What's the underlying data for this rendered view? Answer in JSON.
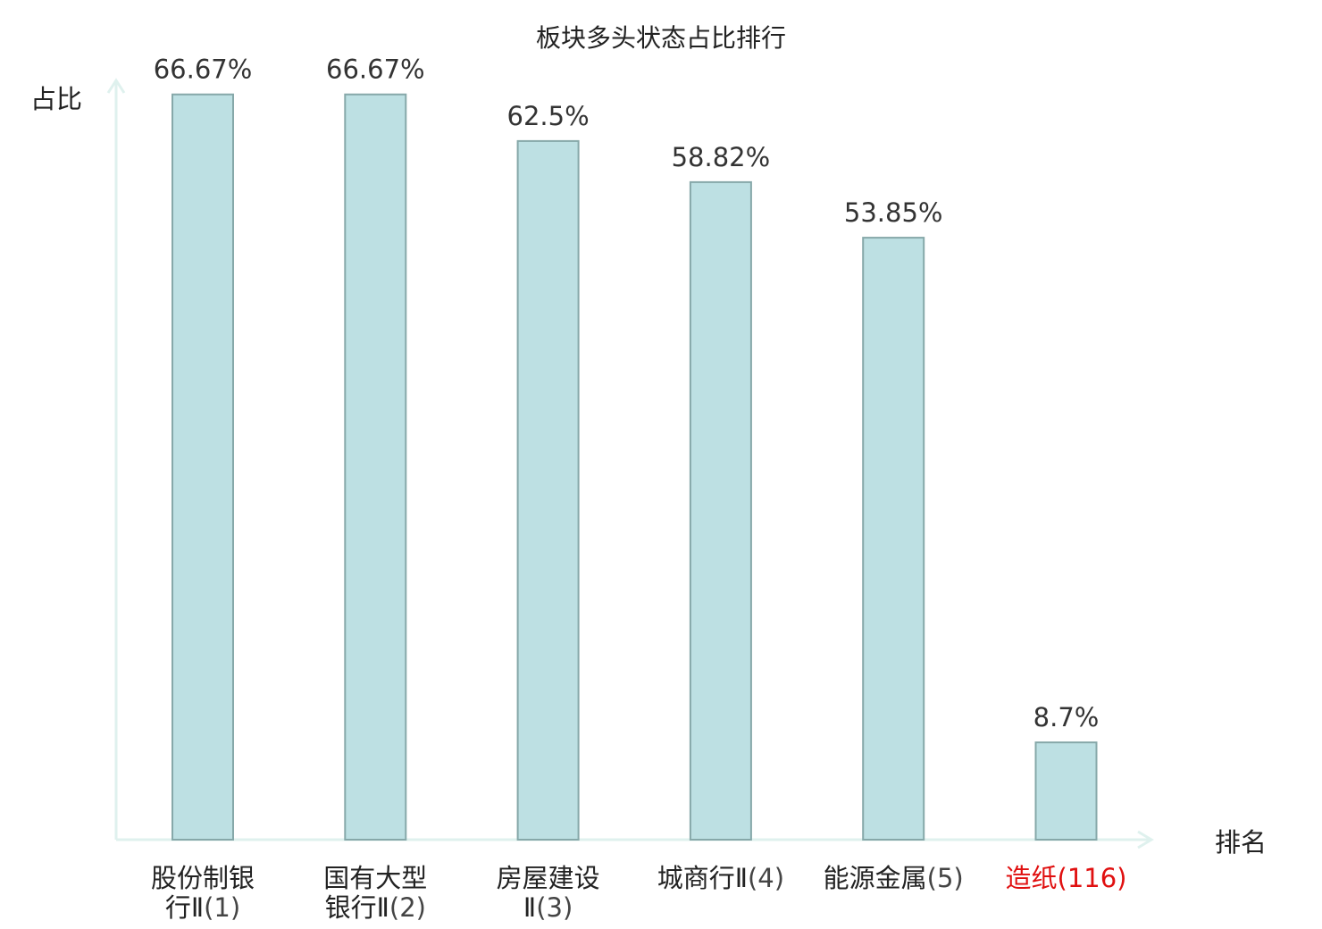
{
  "chart_data": {
    "type": "bar",
    "title": "板块多头状态占比排行",
    "ylabel": "占比",
    "xlabel": "排名",
    "ylim": [
      0,
      70
    ],
    "grid": false,
    "categories": [
      {
        "name": "股份制银行Ⅱ",
        "rank": "(1)",
        "value": 66.67,
        "label": "66.67%",
        "highlight": false
      },
      {
        "name": "国有大型银行Ⅱ",
        "rank": "(2)",
        "value": 66.67,
        "label": "66.67%",
        "highlight": false
      },
      {
        "name": "房屋建设Ⅱ",
        "rank": "(3)",
        "value": 62.5,
        "label": "62.5%",
        "highlight": false
      },
      {
        "name": "城商行Ⅱ",
        "rank": "(4)",
        "value": 58.82,
        "label": "58.82%",
        "highlight": false
      },
      {
        "name": "能源金属",
        "rank": "(5)",
        "value": 53.85,
        "label": "53.85%",
        "highlight": false
      },
      {
        "name": "造纸",
        "rank": "(116)",
        "value": 8.7,
        "label": "8.7%",
        "highlight": true
      }
    ],
    "colors": {
      "bar_fill": "#bde0e3",
      "bar_stroke": "#86a8a9",
      "axis": "#dff1ee",
      "highlight_text": "#e01010",
      "name_text": "#222222",
      "rank_text": "#444444"
    }
  }
}
